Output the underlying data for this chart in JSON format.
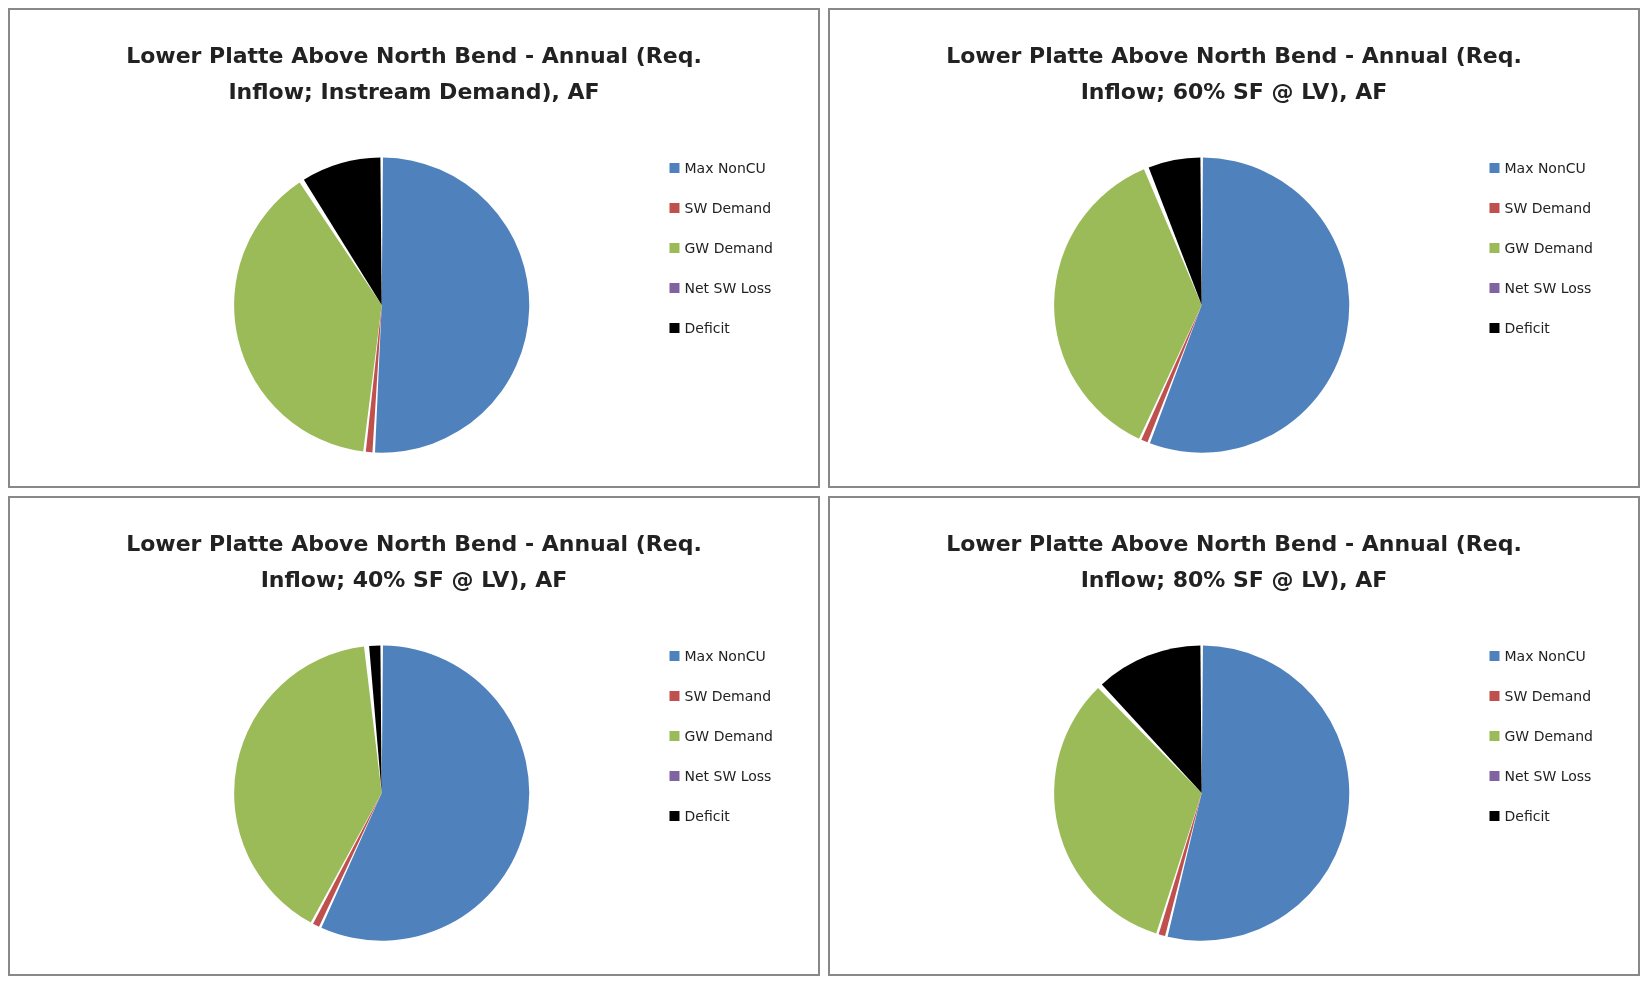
{
  "chart_data": [
    {
      "type": "pie",
      "title": "Lower Platte Above North Bend - Annual (Req. Inflow; Instream Demand), AF",
      "categories": [
        "Max NonCU",
        "SW Demand",
        "GW Demand",
        "Net SW Loss",
        "Deficit"
      ],
      "values": [
        51,
        1,
        39,
        0,
        9
      ],
      "colors": [
        "#4f81bd",
        "#c0504d",
        "#9bbb59",
        "#8064a2",
        "#000000"
      ],
      "legend": "right"
    },
    {
      "type": "pie",
      "title": "Lower Platte Above North Bend - Annual (Req. Inflow; 60% SF @ LV), AF",
      "categories": [
        "Max NonCU",
        "SW Demand",
        "GW Demand",
        "Net SW Loss",
        "Deficit"
      ],
      "values": [
        56,
        1,
        37,
        0,
        6
      ],
      "colors": [
        "#4f81bd",
        "#c0504d",
        "#9bbb59",
        "#8064a2",
        "#000000"
      ],
      "legend": "right"
    },
    {
      "type": "pie",
      "title": "Lower Platte Above North Bend - Annual (Req. Inflow; 40% SF @ LV), AF",
      "categories": [
        "Max NonCU",
        "SW Demand",
        "GW Demand",
        "Net SW Loss",
        "Deficit"
      ],
      "values": [
        57,
        1,
        40.5,
        0,
        1.5
      ],
      "colors": [
        "#4f81bd",
        "#c0504d",
        "#9bbb59",
        "#8064a2",
        "#000000"
      ],
      "legend": "right"
    },
    {
      "type": "pie",
      "title": "Lower Platte Above North Bend - Annual (Req. Inflow; 80% SF @ LV), AF",
      "categories": [
        "Max NonCU",
        "SW Demand",
        "GW Demand",
        "Net SW Loss",
        "Deficit"
      ],
      "values": [
        54,
        1,
        33,
        0,
        12
      ],
      "colors": [
        "#4f81bd",
        "#c0504d",
        "#9bbb59",
        "#8064a2",
        "#000000"
      ],
      "legend": "right"
    }
  ]
}
